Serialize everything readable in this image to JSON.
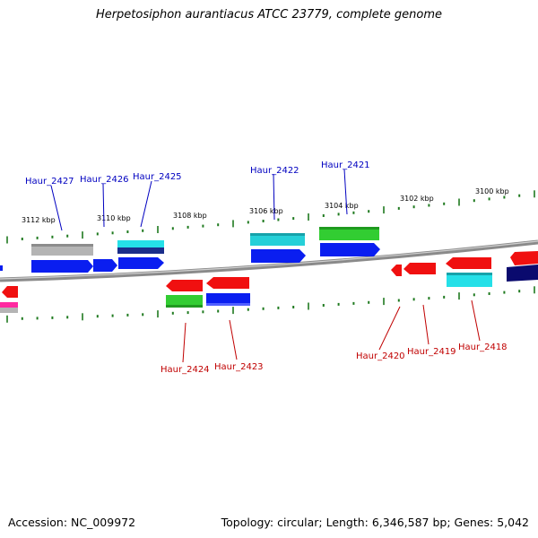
{
  "title": "Herpetosiphon aurantiacus ATCC 23779, complete genome",
  "footer": {
    "accession": "Accession: NC_009972",
    "topology": "Topology: circular; Length: 6,346,587 bp; Genes: 5,042"
  },
  "colors": {
    "backbone": "#8a8a8a",
    "tick": "#1f7a1f",
    "forward_label": "#0000c0",
    "reverse_label": "#c00000"
  },
  "kbp_labels": [
    "3112 kbp",
    "3110 kbp",
    "3108 kbp",
    "3106 kbp",
    "3104 kbp",
    "3102 kbp",
    "3100 kbp"
  ],
  "gene_labels": {
    "forward": [
      "Haur_2427",
      "Haur_2426",
      "Haur_2425",
      "Haur_2422",
      "Haur_2421"
    ],
    "reverse": [
      "Haur_2424",
      "Haur_2423",
      "Haur_2420",
      "Haur_2419",
      "Haur_2418"
    ]
  }
}
